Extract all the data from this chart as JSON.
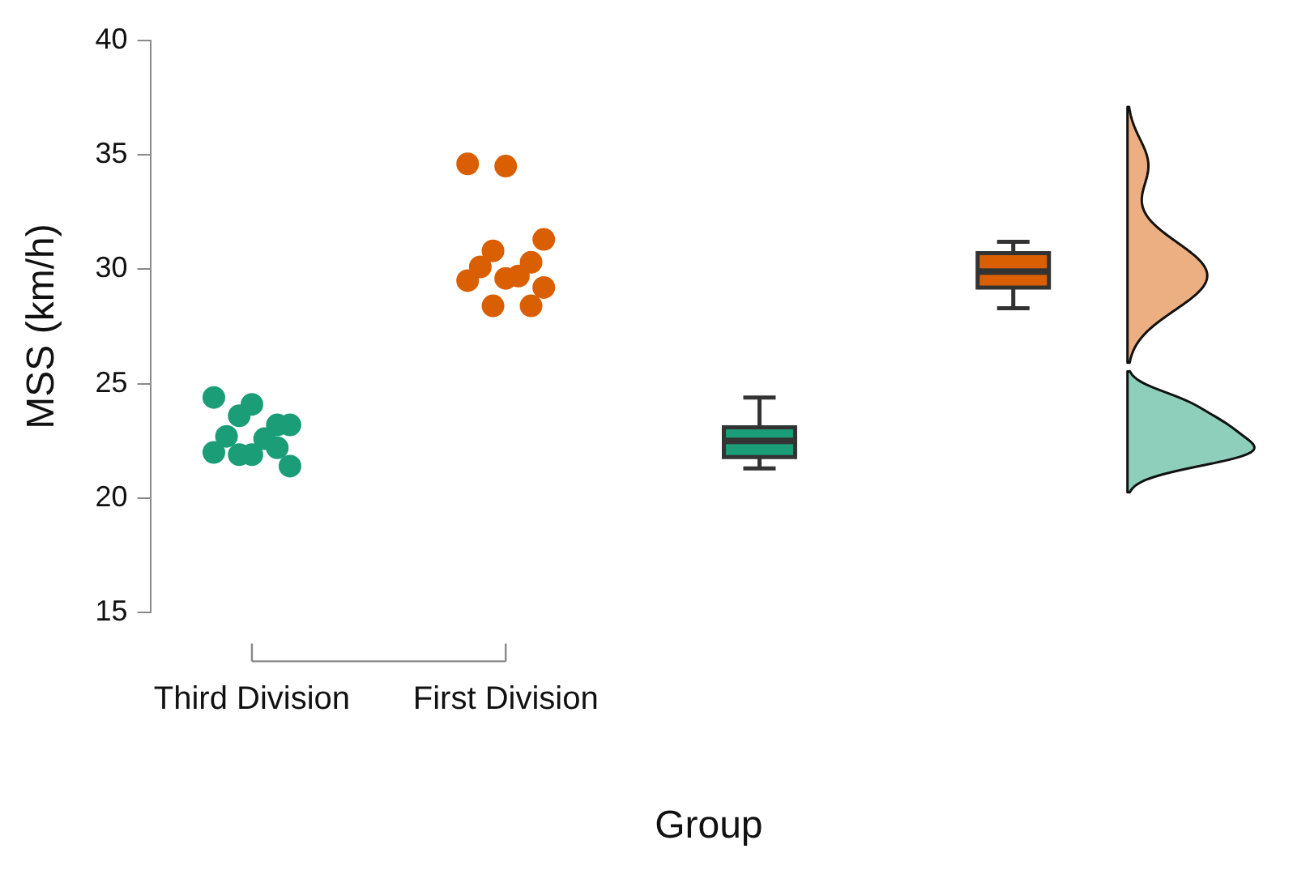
{
  "chart_data": {
    "type": "box",
    "xlabel": "Group",
    "ylabel": "MSS (km/h)",
    "categories": [
      "Third Division",
      "First Division",
      null,
      null
    ],
    "ylim": [
      15,
      40
    ],
    "yticks": [
      15,
      20,
      25,
      30,
      35,
      40
    ],
    "grid": false,
    "legend": false,
    "marker": "circle",
    "series": [
      {
        "type": "scatter",
        "color": "#1b9e77",
        "x": [
          "Third Division",
          "Third Division",
          "Third Division",
          "Third Division",
          "Third Division",
          "Third Division",
          "Third Division",
          "Third Division",
          "Third Division",
          "Third Division",
          "Third Division",
          "Third Division"
        ],
        "values": [
          24.4,
          24.1,
          23.2,
          23.6,
          23.2,
          22.7,
          22.6,
          22.0,
          21.9,
          21.4,
          21.9,
          22.2
        ]
      },
      {
        "type": "scatter",
        "color": "#d95f02",
        "x": [
          "First Division",
          "First Division",
          "First Division",
          "First Division",
          "First Division",
          "First Division",
          "First Division",
          "First Division",
          "First Division",
          "First Division",
          "First Division",
          "First Division"
        ],
        "values": [
          34.6,
          34.5,
          31.3,
          30.8,
          30.3,
          30.1,
          29.7,
          29.5,
          29.6,
          29.2,
          28.4,
          28.4
        ]
      },
      {
        "type": "box",
        "color": "#1b9e77",
        "boxes": [
          null,
          null,
          {
            "low": 21.3,
            "q1": 21.8,
            "median": 22.5,
            "q3": 23.1,
            "high": 24.4
          },
          null
        ]
      },
      {
        "type": "box",
        "color": "#d95f02",
        "boxes": [
          null,
          null,
          null,
          {
            "low": 28.3,
            "q1": 29.2,
            "median": 29.9,
            "q3": 30.7,
            "high": 31.2
          }
        ]
      }
    ]
  }
}
